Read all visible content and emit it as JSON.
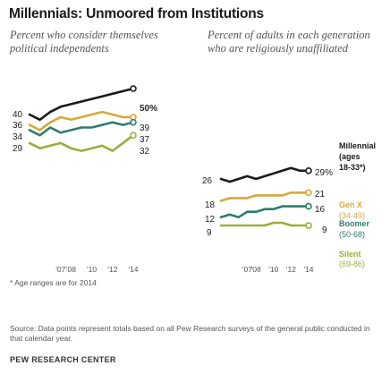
{
  "title": "Millennials: Unmoored from Institutions",
  "subtitle_left": "Percent who consider themselves political independents",
  "subtitle_right": "Percent of adults in each generation who are religiously unaffiliated",
  "note": "* Age ranges are for 2014",
  "source": "Source: Data points represent totals based on all Pew Research surveys of the general public conducted in that calendar year.",
  "org": "PEW RESEARCH CENTER",
  "chart_data": [
    {
      "type": "line",
      "x": [
        2004,
        2005,
        2006,
        2007,
        2008,
        2009,
        2010,
        2011,
        2012,
        2013,
        2014
      ],
      "xticks": [
        "'07",
        "'08",
        "'10",
        "'12",
        "'14"
      ],
      "xtick_values": [
        2007,
        2008,
        2010,
        2012,
        2014
      ],
      "start_labels": [
        "40",
        "36",
        "34",
        "29"
      ],
      "end_labels": [
        "50%",
        "39",
        "37",
        "32"
      ],
      "series": [
        {
          "values": [
            40,
            38,
            41,
            43,
            44,
            45,
            46,
            47,
            48,
            49,
            50
          ],
          "color": "#1a1a1a"
        },
        {
          "values": [
            36,
            34,
            37,
            39,
            38,
            39,
            40,
            41,
            40,
            39,
            39
          ],
          "color": "#d4aa3a"
        },
        {
          "values": [
            34,
            32,
            35,
            33,
            34,
            35,
            35,
            36,
            37,
            36,
            37
          ],
          "color": "#2e7d6d"
        },
        {
          "values": [
            29,
            27,
            28,
            29,
            27,
            26,
            27,
            28,
            26,
            29,
            32
          ],
          "color": "#9aae3a"
        }
      ]
    },
    {
      "type": "line",
      "x": [
        2004,
        2005,
        2006,
        2007,
        2008,
        2009,
        2010,
        2011,
        2012,
        2013,
        2014
      ],
      "xticks": [
        "'07",
        "'08",
        "'10",
        "'12",
        "'14"
      ],
      "xtick_values": [
        2007,
        2008,
        2010,
        2012,
        2014
      ],
      "series": [
        {
          "start_label": "26",
          "end_label": "29%",
          "name": "Millennial",
          "range": "(ages 18-33*)",
          "values": [
            26,
            25,
            26,
            27,
            26,
            27,
            28,
            29,
            30,
            29,
            29
          ],
          "color": "#1a1a1a"
        },
        {
          "start_label": "18",
          "end_label": "21",
          "name": "Gen X",
          "range": "(34-49)",
          "values": [
            18,
            19,
            19,
            19,
            20,
            20,
            20,
            20,
            21,
            21,
            21
          ],
          "color": "#d4aa3a"
        },
        {
          "start_label": "12",
          "end_label": "16",
          "name": "Boomer",
          "range": "(50-68)",
          "values": [
            12,
            13,
            12,
            14,
            14,
            15,
            15,
            16,
            16,
            16,
            16
          ],
          "color": "#2e7d6d"
        },
        {
          "start_label": "9",
          "end_label": "9",
          "name": "Silent",
          "range": "(69-86)",
          "values": [
            9,
            9,
            9,
            9,
            9,
            9,
            10,
            10,
            9,
            9,
            9
          ],
          "color": "#9aae3a"
        }
      ]
    }
  ]
}
